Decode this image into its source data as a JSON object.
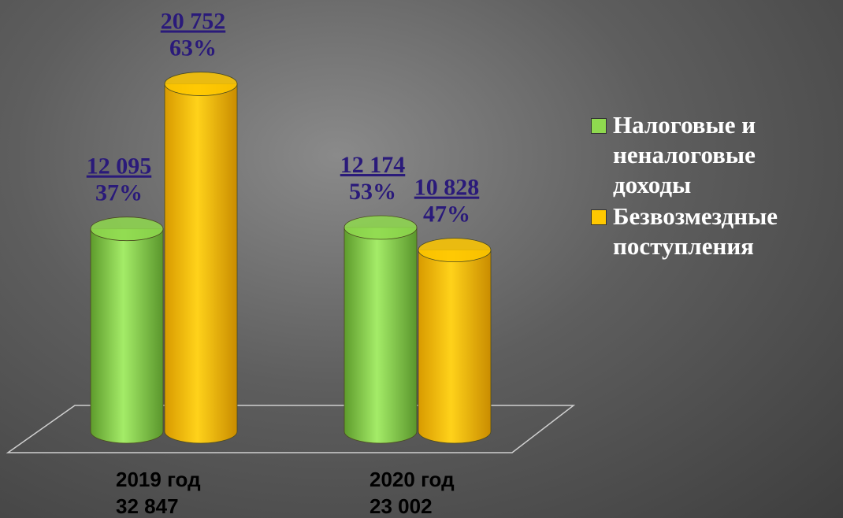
{
  "chart_data": {
    "type": "bar3d",
    "categories": [
      "2019 год",
      "2020 год"
    ],
    "total_labels": [
      "32 847",
      "23 002"
    ],
    "series": [
      {
        "name": "Налоговые и неналоговые доходы",
        "color": "#8fd94f",
        "values": [
          12095,
          12174
        ],
        "value_labels": [
          "12 095",
          "12 174"
        ],
        "share_labels": [
          "37%",
          "53%"
        ]
      },
      {
        "name": "Безвозмездные поступления",
        "color": "#ffc800",
        "values": [
          20752,
          10828
        ],
        "value_labels": [
          "20 752",
          "10 828"
        ],
        "share_labels": [
          "63%",
          "47%"
        ]
      }
    ],
    "ylim": [
      0,
      22000
    ],
    "legend": "right"
  }
}
